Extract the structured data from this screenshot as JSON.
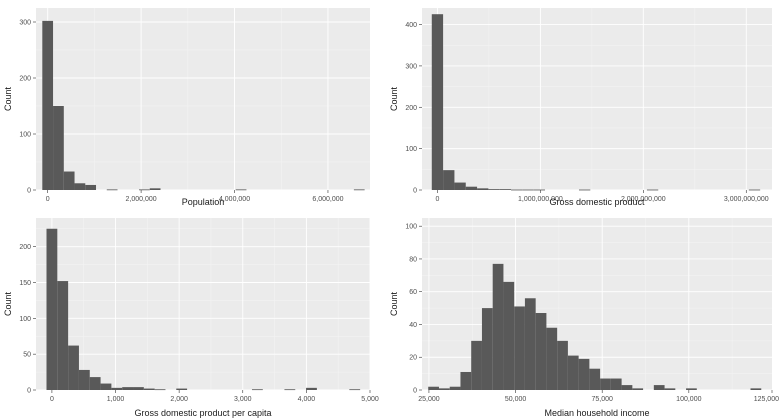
{
  "fill_color": "#595959",
  "panel_color": "#ebebeb",
  "chart_data": [
    {
      "type": "bar",
      "xlabel": "Population",
      "ylabel": "Count",
      "xlim": [
        -250000,
        6900000
      ],
      "ylim": [
        0,
        325
      ],
      "xticks": [
        0,
        2000000,
        4000000,
        6000000
      ],
      "xtick_labels": [
        "0",
        "2,000,000",
        "4,000,000",
        "6,000,000"
      ],
      "yticks": [
        0,
        100,
        200,
        300
      ],
      "ytick_labels": [
        "0",
        "100",
        "200",
        "300"
      ],
      "bin_width": 230000,
      "bins": [
        {
          "x0": -115000,
          "count": 302
        },
        {
          "x0": 115000,
          "count": 150
        },
        {
          "x0": 345000,
          "count": 33
        },
        {
          "x0": 575000,
          "count": 12
        },
        {
          "x0": 805000,
          "count": 9
        },
        {
          "x0": 1265000,
          "count": 1
        },
        {
          "x0": 1955000,
          "count": 1
        },
        {
          "x0": 2185000,
          "count": 3
        },
        {
          "x0": 4025000,
          "count": 1
        },
        {
          "x0": 6555000,
          "count": 1
        }
      ]
    },
    {
      "type": "bar",
      "xlabel": "Gross domestic product",
      "ylabel": "Count",
      "xlim": [
        -150000000,
        3250000000
      ],
      "ylim": [
        0,
        440
      ],
      "xticks": [
        0,
        1000000000,
        2000000000,
        3000000000
      ],
      "xtick_labels": [
        "0",
        "1,000,000,000",
        "2,000,000,000",
        "3,000,000,000"
      ],
      "yticks": [
        0,
        100,
        200,
        300,
        400
      ],
      "ytick_labels": [
        "0",
        "100",
        "200",
        "300",
        "400"
      ],
      "bin_width": 110000000,
      "bins": [
        {
          "x0": -55000000,
          "count": 425
        },
        {
          "x0": 55000000,
          "count": 48
        },
        {
          "x0": 165000000,
          "count": 18
        },
        {
          "x0": 275000000,
          "count": 8
        },
        {
          "x0": 385000000,
          "count": 4
        },
        {
          "x0": 495000000,
          "count": 2
        },
        {
          "x0": 605000000,
          "count": 2
        },
        {
          "x0": 715000000,
          "count": 1
        },
        {
          "x0": 825000000,
          "count": 1
        },
        {
          "x0": 935000000,
          "count": 1
        },
        {
          "x0": 1375000000,
          "count": 1
        },
        {
          "x0": 2035000000,
          "count": 1
        },
        {
          "x0": 3025000000,
          "count": 1
        }
      ]
    },
    {
      "type": "bar",
      "xlabel": "Gross domestic product per capita",
      "ylabel": "Count",
      "xlim": [
        -250,
        5000
      ],
      "ylim": [
        0,
        240
      ],
      "xticks": [
        0,
        1000,
        2000,
        3000,
        4000,
        5000
      ],
      "xtick_labels": [
        "0",
        "1,000",
        "2,000",
        "3,000",
        "4,000",
        "5,000"
      ],
      "yticks": [
        0,
        50,
        100,
        150,
        200
      ],
      "ytick_labels": [
        "0",
        "50",
        "100",
        "150",
        "200"
      ],
      "bin_width": 170,
      "bins": [
        {
          "x0": -85,
          "count": 225
        },
        {
          "x0": 85,
          "count": 152
        },
        {
          "x0": 255,
          "count": 62
        },
        {
          "x0": 425,
          "count": 28
        },
        {
          "x0": 595,
          "count": 18
        },
        {
          "x0": 765,
          "count": 9
        },
        {
          "x0": 935,
          "count": 3
        },
        {
          "x0": 1105,
          "count": 4
        },
        {
          "x0": 1275,
          "count": 4
        },
        {
          "x0": 1445,
          "count": 2
        },
        {
          "x0": 1615,
          "count": 1
        },
        {
          "x0": 1955,
          "count": 2
        },
        {
          "x0": 3145,
          "count": 1
        },
        {
          "x0": 3655,
          "count": 1
        },
        {
          "x0": 3995,
          "count": 3
        },
        {
          "x0": 4675,
          "count": 1
        }
      ]
    },
    {
      "type": "bar",
      "xlabel": "Median household income",
      "ylabel": "Count",
      "xlim": [
        23000,
        124000
      ],
      "ylim": [
        0,
        105
      ],
      "xticks": [
        25000,
        50000,
        75000,
        100000,
        125000
      ],
      "xtick_labels": [
        "25,000",
        "50,000",
        "75,000",
        "100,000",
        "125,000"
      ],
      "yticks": [
        0,
        20,
        40,
        60,
        80,
        100
      ],
      "ytick_labels": [
        "0",
        "20",
        "40",
        "60",
        "80",
        "100"
      ],
      "bin_width": 3100,
      "bins": [
        {
          "x0": 24800,
          "count": 2
        },
        {
          "x0": 27900,
          "count": 1
        },
        {
          "x0": 31000,
          "count": 2
        },
        {
          "x0": 34100,
          "count": 11
        },
        {
          "x0": 37200,
          "count": 30
        },
        {
          "x0": 40300,
          "count": 50
        },
        {
          "x0": 43400,
          "count": 77
        },
        {
          "x0": 46500,
          "count": 66
        },
        {
          "x0": 49600,
          "count": 51
        },
        {
          "x0": 52700,
          "count": 56
        },
        {
          "x0": 55800,
          "count": 47
        },
        {
          "x0": 58900,
          "count": 38
        },
        {
          "x0": 62000,
          "count": 30
        },
        {
          "x0": 65100,
          "count": 21
        },
        {
          "x0": 68200,
          "count": 19
        },
        {
          "x0": 71300,
          "count": 13
        },
        {
          "x0": 74400,
          "count": 7
        },
        {
          "x0": 77500,
          "count": 7
        },
        {
          "x0": 80600,
          "count": 3
        },
        {
          "x0": 83700,
          "count": 1
        },
        {
          "x0": 89900,
          "count": 3
        },
        {
          "x0": 93000,
          "count": 1
        },
        {
          "x0": 99200,
          "count": 1
        },
        {
          "x0": 117800,
          "count": 1
        }
      ]
    }
  ]
}
